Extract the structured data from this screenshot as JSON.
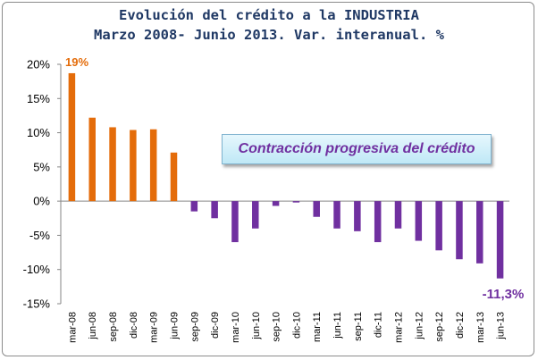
{
  "chart_data": {
    "type": "bar",
    "title": "Evolución del crédito a la INDUSTRIA",
    "subtitle": "Marzo 2008- Junio 2013. Var. interanual. %",
    "categories": [
      "mar-08",
      "jun-08",
      "sep-08",
      "dic-08",
      "mar-09",
      "jun-09",
      "sep-09",
      "dic-09",
      "mar-10",
      "jun-10",
      "sep-10",
      "dic-10",
      "mar-11",
      "jun-11",
      "sep-11",
      "dic-11",
      "mar-12",
      "jun-12",
      "sep-12",
      "dic-12",
      "mar-13",
      "jun-13"
    ],
    "values": [
      18.7,
      12.2,
      10.8,
      10.4,
      10.5,
      7.1,
      -1.5,
      -2.5,
      -6.0,
      -4.0,
      -0.7,
      -0.2,
      -2.3,
      -4.0,
      -4.4,
      -6.0,
      -4.0,
      -5.8,
      -7.2,
      -8.5,
      -9.1,
      -11.3
    ],
    "colors": {
      "positive": "#e46c0a",
      "negative": "#7030a0"
    },
    "ylim": [
      -15,
      20
    ],
    "yticks": [
      20,
      15,
      10,
      5,
      0,
      -5,
      -10,
      -15
    ],
    "ytick_labels": [
      "20%",
      "15%",
      "10%",
      "5%",
      "0%",
      "-5%",
      "-10%",
      "-15%"
    ],
    "grid": false,
    "annotations": {
      "first_label": "19%",
      "last_label": "-11,3%",
      "callout": "Contracción progresiva del crédito"
    }
  }
}
